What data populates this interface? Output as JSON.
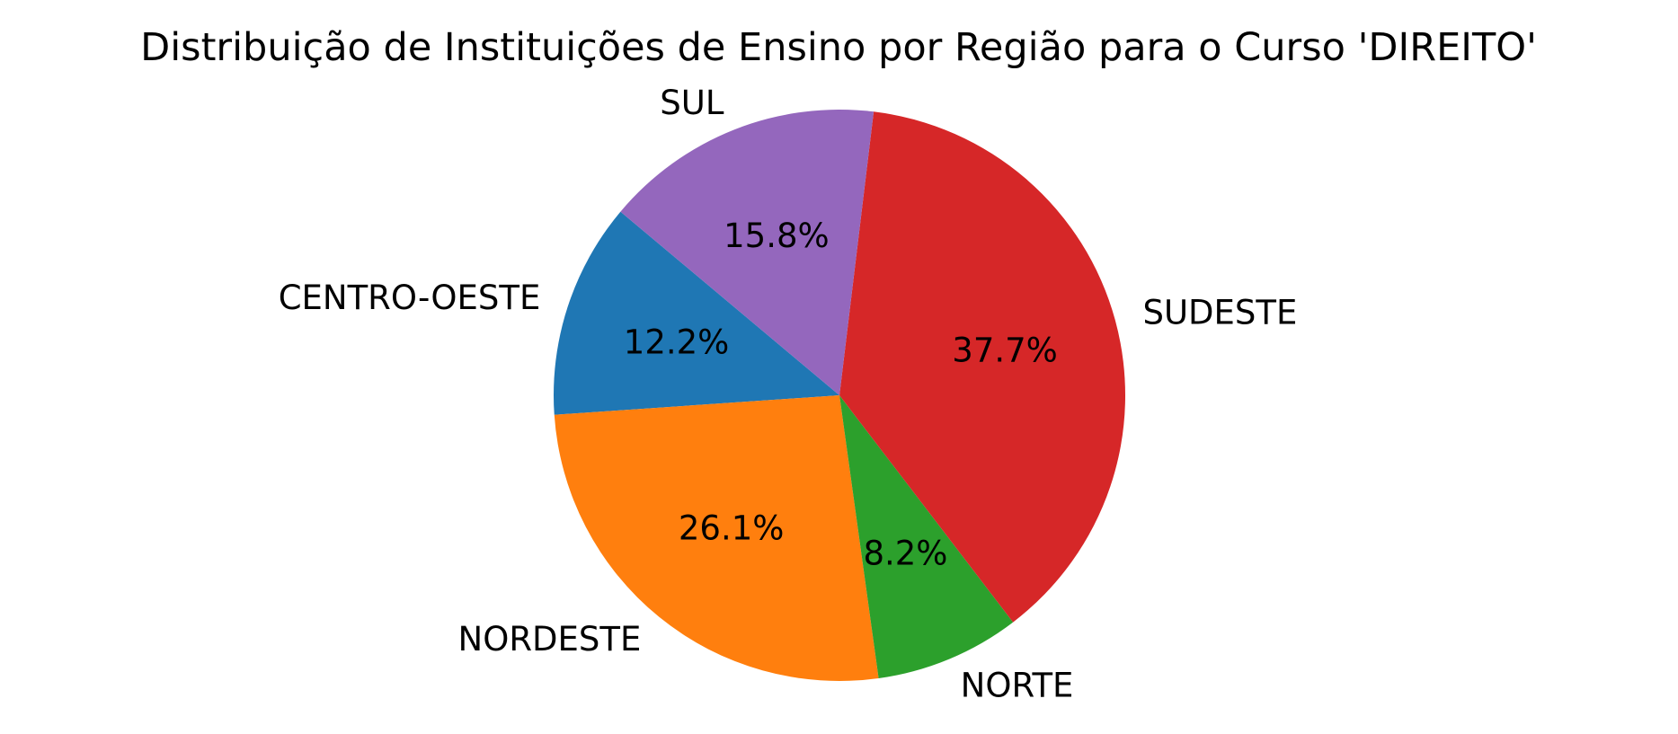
{
  "chart_data": {
    "type": "pie",
    "title": "Distribuição de Instituições de Ensino por Região para o Curso 'DIREITO'",
    "slices": [
      {
        "label": "CENTRO-OESTE",
        "value": 12.2,
        "pct_text": "12.2%",
        "color": "#1f77b4"
      },
      {
        "label": "NORDESTE",
        "value": 26.1,
        "pct_text": "26.1%",
        "color": "#ff7f0e"
      },
      {
        "label": "NORTE",
        "value": 8.2,
        "pct_text": "8.2%",
        "color": "#2ca02c"
      },
      {
        "label": "SUDESTE",
        "value": 37.7,
        "pct_text": "37.7%",
        "color": "#d62728"
      },
      {
        "label": "SUL",
        "value": 15.8,
        "pct_text": "15.8%",
        "color": "#9467bd"
      }
    ],
    "start_angle_deg": 140,
    "direction": "counterclockwise",
    "legend": "none"
  }
}
